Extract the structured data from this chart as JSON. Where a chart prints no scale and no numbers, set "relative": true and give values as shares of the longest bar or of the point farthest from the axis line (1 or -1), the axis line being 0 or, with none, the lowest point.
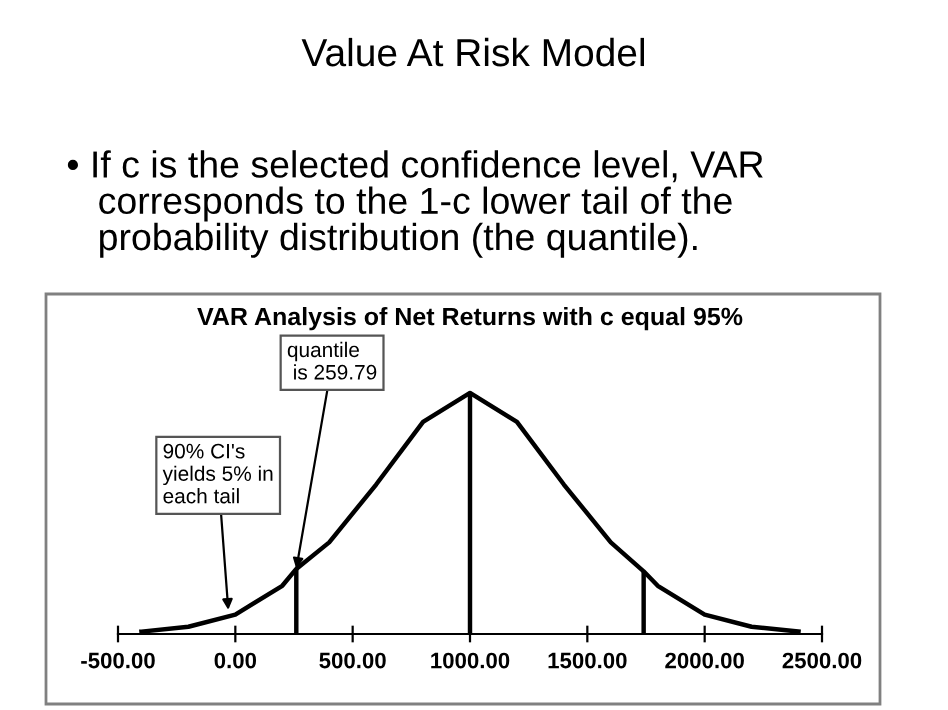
{
  "chart_data": {
    "type": "line",
    "title": "Value At Risk Model",
    "subtitle": "• If c is the selected confidence level, VAR\n   corresponds to the 1-c lower tail of the\n   probability distribution (the quantile).",
    "annotations": [
      "VAR Analysis of Net Returns with c equal 95%",
      {
        "text": "quantile\n is 259.79",
        "x": 259.79,
        "y": 0.27
      },
      {
        "text": "90% CI's\nyields 5% in\neach tail",
        "x": -30,
        "y": 0.1
      }
    ],
    "relative": true,
    "x": [
      -400,
      -200,
      0,
      200,
      259.79,
      400,
      600,
      800,
      1000,
      1200,
      1400,
      1600,
      1740,
      1800,
      2000,
      2200,
      2400
    ],
    "series": [
      {
        "color": "#000000",
        "values": [
          0.01,
          0.03,
          0.08,
          0.2,
          0.27,
          0.38,
          0.62,
          0.88,
          1,
          0.88,
          0.62,
          0.38,
          0.26,
          0.2,
          0.08,
          0.03,
          0.01
        ]
      }
    ],
    "ref_lines": [
      {
        "axis": "x",
        "value": 259.79,
        "color": "#000000"
      },
      {
        "axis": "x",
        "value": 1000,
        "color": "#000000"
      },
      {
        "axis": "x",
        "value": 1740,
        "color": "#000000"
      }
    ],
    "xlim": [
      -500,
      2500
    ],
    "xticks": [
      {
        "value": -500,
        "label": "-500.00"
      },
      {
        "value": 0,
        "label": "0.00"
      },
      {
        "value": 500,
        "label": "500.00"
      },
      {
        "value": 1000,
        "label": "1000.00"
      },
      {
        "value": 1500,
        "label": "1500.00"
      },
      {
        "value": 2000,
        "label": "2000.00"
      },
      {
        "value": 2500,
        "label": "2500.00"
      }
    ],
    "tick_labels": "x",
    "grid": false,
    "legend": false,
    "marker": "none",
    "line_style": "solid"
  }
}
